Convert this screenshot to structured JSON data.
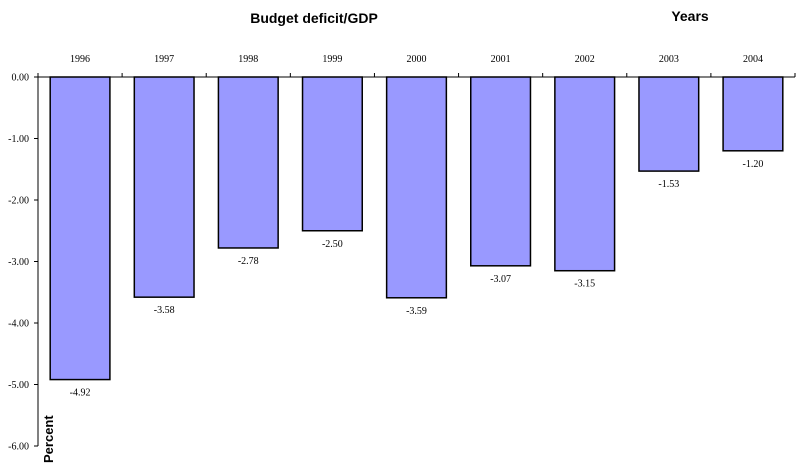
{
  "chart_data": {
    "type": "bar",
    "title": "Budget deficit/GDP",
    "xlabel": "Years",
    "ylabel": "Percent",
    "categories": [
      "1996",
      "1997",
      "1998",
      "1999",
      "2000",
      "2001",
      "2002",
      "2003",
      "2004"
    ],
    "values": [
      -4.92,
      -3.58,
      -2.78,
      -2.5,
      -3.59,
      -3.07,
      -3.15,
      -1.53,
      -1.2
    ],
    "data_labels": [
      "-4.92",
      "-3.58",
      "-2.78",
      "-2.50",
      "-3.59",
      "-3.07",
      "-3.15",
      "-1.53",
      "-1.20"
    ],
    "ylim": [
      -6,
      0
    ],
    "yticks": [
      0,
      -1,
      -2,
      -3,
      -4,
      -5,
      -6
    ],
    "ytick_labels": [
      "0.00",
      "-1.00",
      "-2.00",
      "-3.00",
      "-4.00",
      "-5.00",
      "-6.00"
    ],
    "x_axis_position": "top",
    "grid": false,
    "colors": {
      "bar": "#9999ff",
      "outline": "#000000"
    }
  }
}
